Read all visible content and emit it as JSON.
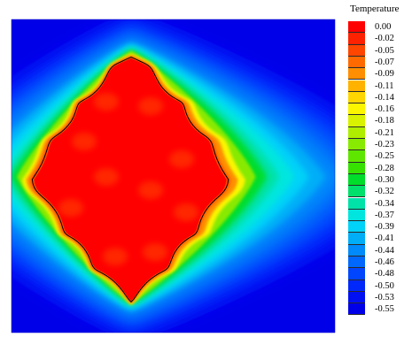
{
  "chart_data": {
    "type": "heatmap",
    "title": "",
    "legend_title": "Temperature",
    "legend_placement": "right",
    "colorbar": {
      "levels": [
        "0.00",
        "-0.02",
        "-0.05",
        "-0.07",
        "-0.09",
        "-0.11",
        "-0.14",
        "-0.16",
        "-0.18",
        "-0.21",
        "-0.23",
        "-0.25",
        "-0.28",
        "-0.30",
        "-0.32",
        "-0.34",
        "-0.37",
        "-0.39",
        "-0.41",
        "-0.44",
        "-0.46",
        "-0.48",
        "-0.50",
        "-0.53",
        "-0.55"
      ],
      "colors": [
        "#ff0000",
        "#ff2200",
        "#ff4600",
        "#ff6a00",
        "#ff8e00",
        "#ffb200",
        "#ffd600",
        "#fbf500",
        "#d8f200",
        "#b0ee00",
        "#88ea00",
        "#5fe600",
        "#36e000",
        "#00dd2a",
        "#00e06a",
        "#00e2a8",
        "#00e6df",
        "#00d2f8",
        "#00aef8",
        "#008afa",
        "#0068fc",
        "#0046fe",
        "#0028fb",
        "#0010f3",
        "#0000e8"
      ],
      "min": -0.55,
      "max": 0.0
    },
    "field": {
      "description_free": true,
      "interface_level": 0.0
    }
  }
}
